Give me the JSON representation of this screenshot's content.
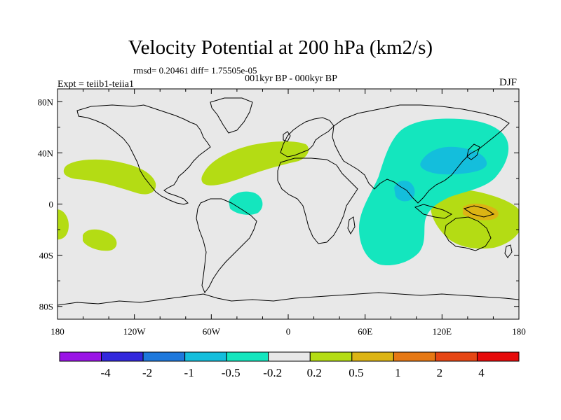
{
  "title": "Velocity Potential at 200 hPa (km2/s)",
  "stats": "rmsd= 0.20461 diff= 1.75505e-05",
  "experiment": "Expt = teiib1-teiia1",
  "periods": "001kyr BP - 000kyr BP",
  "season": "DJF",
  "map": {
    "projection": "cylindrical-equidistant",
    "lon_range": [
      -180,
      180
    ],
    "lat_range": [
      -90,
      90
    ],
    "background_color": "#e8e8e8",
    "lon_ticks": [
      {
        "lon": -180,
        "label": "180"
      },
      {
        "lon": -120,
        "label": "120W"
      },
      {
        "lon": -60,
        "label": "60W"
      },
      {
        "lon": 0,
        "label": "0"
      },
      {
        "lon": 60,
        "label": "60E"
      },
      {
        "lon": 120,
        "label": "120E"
      },
      {
        "lon": 180,
        "label": "180"
      }
    ],
    "lat_ticks": [
      {
        "lat": 80,
        "label": "80N"
      },
      {
        "lat": 40,
        "label": "40N"
      },
      {
        "lat": 0,
        "label": "0"
      },
      {
        "lat": -40,
        "label": "40S"
      },
      {
        "lat": -80,
        "label": "80S"
      }
    ]
  },
  "colorbar": {
    "colors": [
      "#9a14e6",
      "#3228dc",
      "#1e78dc",
      "#14bedc",
      "#14e6be",
      "#e8e8e8",
      "#b4dc14",
      "#dcb414",
      "#e67814",
      "#e64614",
      "#e60a0a"
    ],
    "labels": [
      "-4",
      "-2",
      "-1",
      "-0.5",
      "-0.2",
      "0.2",
      "0.5",
      "1",
      "2",
      "4"
    ]
  }
}
